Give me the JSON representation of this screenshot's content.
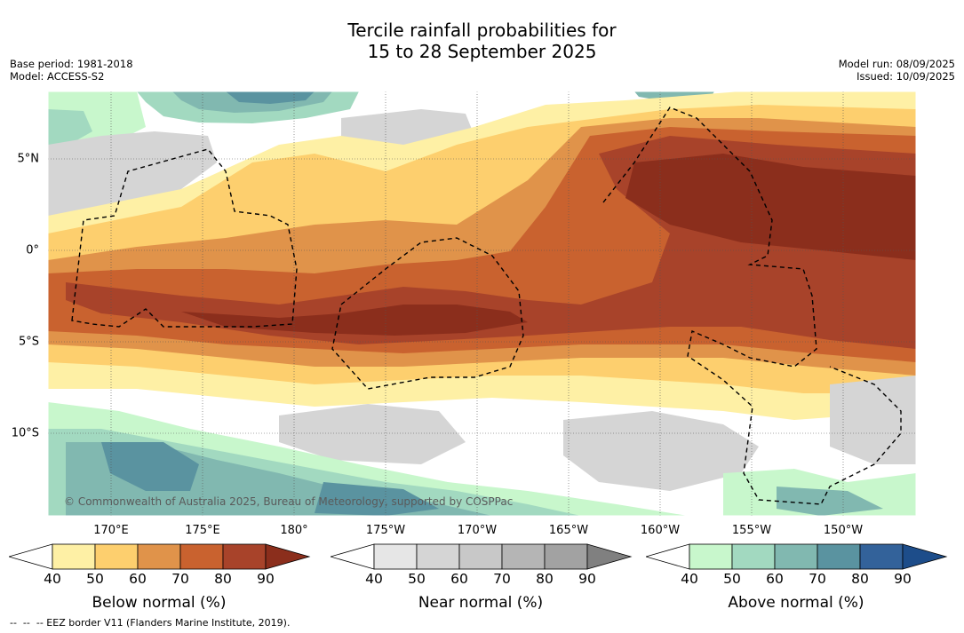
{
  "title_line1": "Tercile rainfall probabilities for",
  "title_line2": "15 to 28 September 2025",
  "left_meta": {
    "base_period": "Base period: 1981-2018",
    "model": "Model: ACCESS-S2"
  },
  "right_meta": {
    "model_run": "Model run: 08/09/2025",
    "issued": "Issued: 10/09/2025"
  },
  "credit": "© Commonwealth of Australia 2025, Bureau of Meteorology, supported by COSPPac",
  "footer": "--  --  -- EEZ border V11 (Flanders Marine Institute, 2019).",
  "lon_labels": [
    "170°E",
    "175°E",
    "180°",
    "175°W",
    "170°W",
    "165°W",
    "160°W",
    "155°W",
    "150°W"
  ],
  "lat_labels": [
    "5°N",
    "0°",
    "5°S",
    "10°S"
  ],
  "colorbars": [
    {
      "name": "below",
      "title": "Below normal (%)",
      "ticks": [
        "40",
        "50",
        "60",
        "70",
        "80",
        "90"
      ],
      "colors": [
        "#ffffff",
        "#fef0a5",
        "#fdcf6e",
        "#e0934a",
        "#c9622f",
        "#a8432a",
        "#8b2e1c"
      ]
    },
    {
      "name": "near",
      "title": "Near normal (%)",
      "ticks": [
        "40",
        "50",
        "60",
        "70",
        "80",
        "90"
      ],
      "colors": [
        "#ffffff",
        "#e6e6e6",
        "#d5d5d5",
        "#c8c8c8",
        "#b5b5b5",
        "#a2a2a2",
        "#808080"
      ]
    },
    {
      "name": "above",
      "title": "Above normal (%)",
      "ticks": [
        "40",
        "50",
        "60",
        "70",
        "80",
        "90"
      ],
      "colors": [
        "#ffffff",
        "#c8f7cc",
        "#a2d9c0",
        "#81b8b0",
        "#5a93a0",
        "#33629a",
        "#1d4d8a"
      ]
    }
  ]
}
